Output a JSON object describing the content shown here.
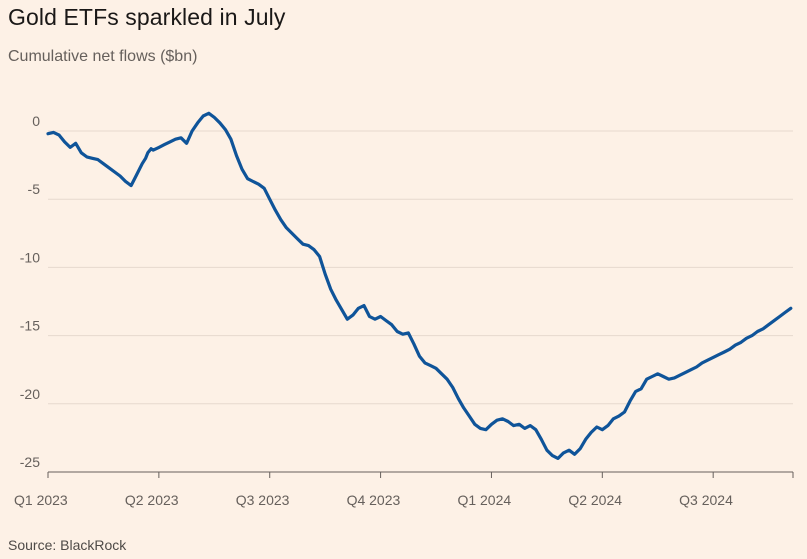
{
  "chart_data": {
    "type": "line",
    "title": "Gold ETFs sparkled in July",
    "subtitle": "Cumulative net flows ($bn)",
    "source": "Source: BlackRock",
    "xlabel": "",
    "ylabel": "",
    "ylim": [
      -25,
      0
    ],
    "yticks": [
      0,
      -5,
      -10,
      -15,
      -20,
      -25
    ],
    "ytick_labels": [
      "0",
      "-5",
      "-10",
      "-15",
      "-20",
      "-25"
    ],
    "xlim": [
      0,
      6.72
    ],
    "xticks": [
      0,
      1,
      2,
      3,
      4,
      5,
      6
    ],
    "xtick_labels": [
      "Q1 2023",
      "Q2 2023",
      "Q3 2023",
      "Q4 2023",
      "Q1 2024",
      "Q2 2024",
      "Q3 2024"
    ],
    "grid": true,
    "series_color": "#0f5499",
    "series": [
      {
        "name": "Cumulative net flows",
        "x": [
          0.0,
          0.05,
          0.1,
          0.15,
          0.2,
          0.25,
          0.3,
          0.35,
          0.4,
          0.45,
          0.5,
          0.55,
          0.6,
          0.65,
          0.7,
          0.75,
          0.8,
          0.85,
          0.88,
          0.9,
          0.93,
          0.95,
          1.0,
          1.05,
          1.1,
          1.15,
          1.2,
          1.25,
          1.3,
          1.35,
          1.4,
          1.45,
          1.5,
          1.55,
          1.6,
          1.65,
          1.7,
          1.75,
          1.8,
          1.85,
          1.9,
          1.95,
          2.0,
          2.05,
          2.1,
          2.15,
          2.2,
          2.25,
          2.3,
          2.35,
          2.4,
          2.45,
          2.5,
          2.55,
          2.6,
          2.65,
          2.7,
          2.75,
          2.8,
          2.85,
          2.9,
          2.95,
          3.0,
          3.05,
          3.1,
          3.15,
          3.2,
          3.25,
          3.3,
          3.35,
          3.4,
          3.45,
          3.5,
          3.55,
          3.6,
          3.65,
          3.7,
          3.75,
          3.8,
          3.85,
          3.9,
          3.95,
          4.0,
          4.05,
          4.1,
          4.15,
          4.2,
          4.25,
          4.3,
          4.35,
          4.4,
          4.45,
          4.5,
          4.55,
          4.6,
          4.65,
          4.7,
          4.75,
          4.8,
          4.85,
          4.9,
          4.95,
          5.0,
          5.05,
          5.1,
          5.15,
          5.2,
          5.25,
          5.3,
          5.35,
          5.4,
          5.45,
          5.5,
          5.55,
          5.6,
          5.65,
          5.7,
          5.75,
          5.8,
          5.85,
          5.9,
          5.95,
          6.0,
          6.05,
          6.1,
          6.15,
          6.2,
          6.25,
          6.3,
          6.35,
          6.4,
          6.45,
          6.5,
          6.55,
          6.6,
          6.65,
          6.7
        ],
        "values": [
          -0.2,
          -0.1,
          -0.3,
          -0.8,
          -1.2,
          -0.9,
          -1.6,
          -1.9,
          -2.0,
          -2.1,
          -2.4,
          -2.7,
          -3.0,
          -3.3,
          -3.7,
          -4.0,
          -3.2,
          -2.4,
          -2.0,
          -1.6,
          -1.3,
          -1.4,
          -1.2,
          -1.0,
          -0.8,
          -0.6,
          -0.5,
          -0.9,
          0.0,
          0.6,
          1.1,
          1.3,
          1.0,
          0.6,
          0.1,
          -0.6,
          -1.8,
          -2.8,
          -3.5,
          -3.7,
          -3.9,
          -4.2,
          -5.0,
          -5.8,
          -6.5,
          -7.1,
          -7.5,
          -7.9,
          -8.3,
          -8.4,
          -8.7,
          -9.2,
          -10.5,
          -11.6,
          -12.4,
          -13.1,
          -13.8,
          -13.5,
          -13.0,
          -12.8,
          -13.6,
          -13.8,
          -13.6,
          -13.9,
          -14.2,
          -14.7,
          -14.9,
          -14.8,
          -15.6,
          -16.5,
          -17.0,
          -17.2,
          -17.4,
          -17.8,
          -18.2,
          -18.8,
          -19.6,
          -20.3,
          -20.9,
          -21.5,
          -21.8,
          -21.9,
          -21.5,
          -21.2,
          -21.1,
          -21.3,
          -21.6,
          -21.5,
          -21.8,
          -21.6,
          -21.9,
          -22.6,
          -23.4,
          -23.8,
          -24.0,
          -23.6,
          -23.4,
          -23.7,
          -23.3,
          -22.6,
          -22.1,
          -21.7,
          -21.9,
          -21.6,
          -21.1,
          -20.9,
          -20.6,
          -19.8,
          -19.1,
          -18.9,
          -18.2,
          -18.0,
          -17.8,
          -18.0,
          -18.2,
          -18.1,
          -17.9,
          -17.7,
          -17.5,
          -17.3,
          -17.0,
          -16.8,
          -16.6,
          -16.4,
          -16.2,
          -16.0,
          -15.7,
          -15.5,
          -15.2,
          -15.0,
          -14.7,
          -14.5,
          -14.2,
          -13.9,
          -13.6,
          -13.3,
          -13.0
        ]
      }
    ]
  }
}
